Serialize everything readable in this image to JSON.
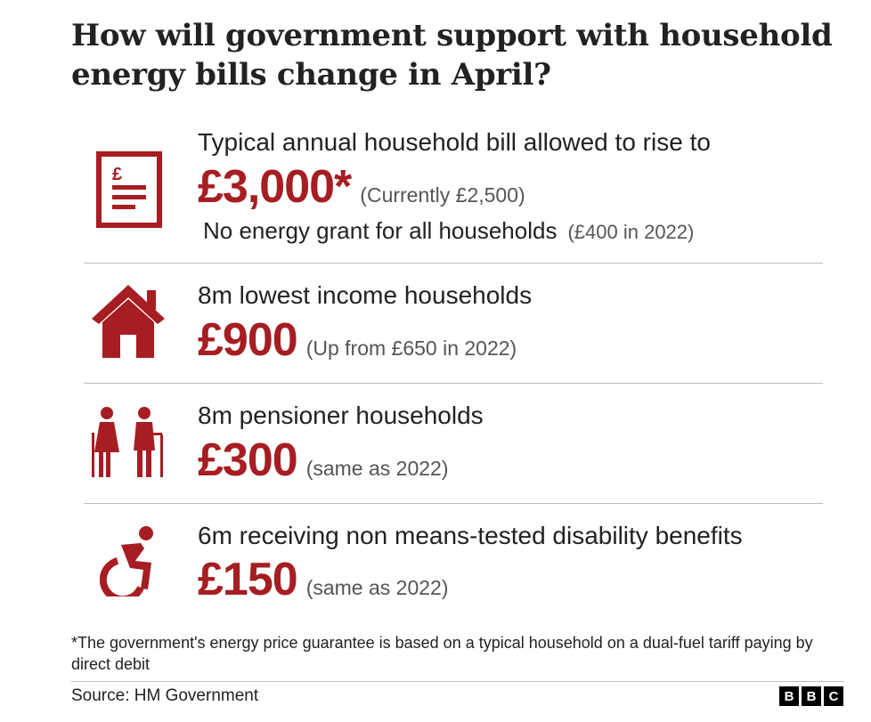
{
  "title": "How will government support with household energy bills change in April?",
  "rows": [
    {
      "label": "Typical annual household bill allowed to rise to",
      "amount": "£3,000*",
      "note": "(Currently £2,500)",
      "sub_label": "No energy grant for all households",
      "sub_note": "(£400 in 2022)",
      "icon": "bill-icon"
    },
    {
      "label": "8m lowest income households",
      "amount": "£900",
      "note": "(Up from £650 in 2022)",
      "icon": "house-icon"
    },
    {
      "label": "8m pensioner households",
      "amount": "£300",
      "note": "(same as 2022)",
      "icon": "pensioners-icon"
    },
    {
      "label": "6m receiving non means-tested disability benefits",
      "amount": "£150",
      "note": "(same as 2022)",
      "icon": "wheelchair-icon"
    }
  ],
  "footnote": "*The government's energy price guarantee is based on a typical household on a dual-fuel tariff paying by direct debit",
  "source": "Source: HM Government",
  "logo": [
    "B",
    "B",
    "C"
  ],
  "colors": {
    "accent": "#a61d22",
    "text": "#222222",
    "divider": "#bdbdbd"
  }
}
